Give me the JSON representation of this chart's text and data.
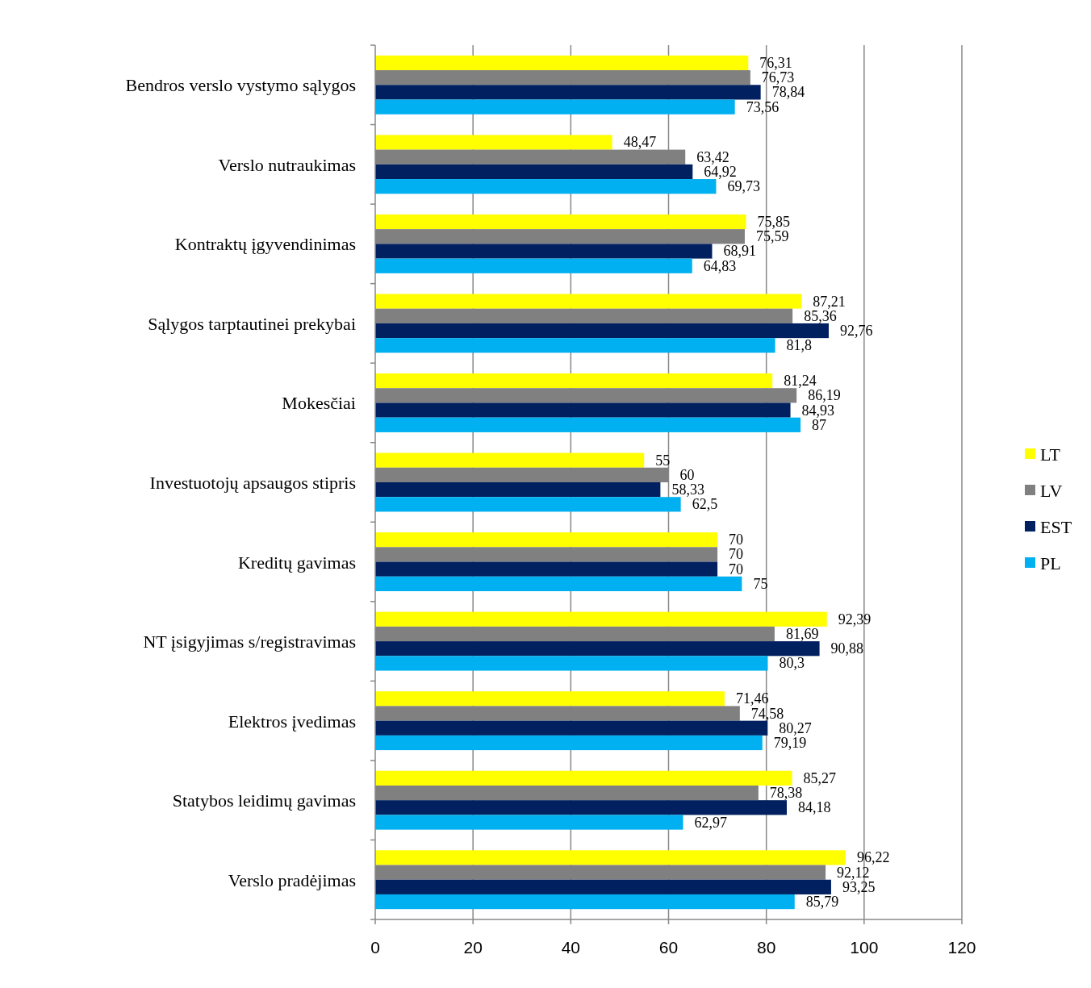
{
  "chart_data": {
    "type": "bar",
    "orientation": "horizontal",
    "categories": [
      "Bendros verslo vystymo sąlygos",
      "Verslo nutraukimas",
      "Kontraktų įgyvendinimas",
      "Sąlygos tarptautinei prekybai",
      "Mokesčiai",
      "Investuotojų apsaugos stipris",
      "Kreditų gavimas",
      "NT įsigyjimas s/registravimas",
      "Elektros įvedimas",
      "Statybos leidimų gavimas",
      "Verslo pradėjimas"
    ],
    "series": [
      {
        "name": "LT",
        "color": "#ffff00",
        "values": [
          76.31,
          48.47,
          75.85,
          87.21,
          81.24,
          55,
          70,
          92.39,
          71.46,
          85.27,
          96.22
        ],
        "value_labels": [
          "76,31",
          "48,47",
          "75,85",
          "87,21",
          "81,24",
          "55",
          "70",
          "92,39",
          "71,46",
          "85,27",
          "96,22"
        ]
      },
      {
        "name": "LV",
        "color": "#808080",
        "values": [
          76.73,
          63.42,
          75.59,
          85.36,
          86.19,
          60,
          70,
          81.69,
          74.58,
          78.38,
          92.12
        ],
        "value_labels": [
          "76,73",
          "63,42",
          "75,59",
          "85,36",
          "86,19",
          "60",
          "70",
          "81,69",
          "74,58",
          "78,38",
          "92,12"
        ]
      },
      {
        "name": "EST",
        "color": "#002060",
        "values": [
          78.84,
          64.92,
          68.91,
          92.76,
          84.93,
          58.33,
          70,
          90.88,
          80.27,
          84.18,
          93.25
        ],
        "value_labels": [
          "78,84",
          "64,92",
          "68,91",
          "92,76",
          "84,93",
          "58,33",
          "70",
          "90,88",
          "80,27",
          "84,18",
          "93,25"
        ]
      },
      {
        "name": "PL",
        "color": "#00b0f0",
        "values": [
          73.56,
          69.73,
          64.83,
          81.8,
          87,
          62.5,
          75,
          80.3,
          79.19,
          62.97,
          85.79
        ],
        "value_labels": [
          "73,56",
          "69,73",
          "64,83",
          "81,8",
          "87",
          "62,5",
          "75",
          "80,3",
          "79,19",
          "62,97",
          "85,79"
        ]
      }
    ],
    "xlim": [
      0,
      120
    ],
    "xticks": [
      0,
      20,
      40,
      60,
      80,
      100,
      120
    ],
    "grid": "x",
    "legend": "right"
  }
}
